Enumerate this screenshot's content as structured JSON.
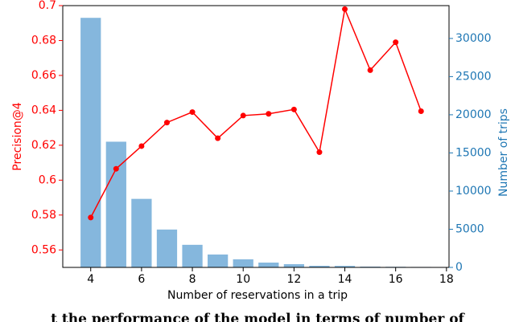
{
  "chart_data": {
    "type": "bar_line",
    "xlabel": "Number of reservations in a trip",
    "ylabel": "Precision@4",
    "y2label": "Number of trips",
    "caption": "t the performance of the model in terms of number of",
    "x": [
      4,
      5,
      6,
      7,
      8,
      9,
      10,
      11,
      12,
      13,
      14,
      15,
      16,
      17
    ],
    "xlim": [
      2.9,
      18.1
    ],
    "xticks": [
      4,
      6,
      8,
      10,
      12,
      14,
      16,
      18
    ],
    "ylim": [
      0.55,
      0.7
    ],
    "yticks": [
      0.56,
      0.58,
      0.6,
      0.62,
      0.64,
      0.66,
      0.68,
      0.7
    ],
    "y2lim": [
      0,
      34300
    ],
    "y2ticks": [
      0,
      5000,
      10000,
      15000,
      20000,
      25000,
      30000
    ],
    "ycolor": "#ff0000",
    "y2color": "#1f77b4",
    "series": [
      {
        "name": "Number of trips",
        "kind": "bar",
        "axis": "y2",
        "color": "#85b7dd",
        "values": [
          32700,
          16470,
          8980,
          4960,
          2960,
          1690,
          1060,
          630,
          420,
          210,
          200,
          100,
          80,
          60
        ]
      },
      {
        "name": "Precision@4",
        "kind": "line",
        "axis": "y",
        "color": "#ff0000",
        "values": [
          0.5786,
          0.6065,
          0.6195,
          0.633,
          0.639,
          0.624,
          0.637,
          0.638,
          0.6405,
          0.616,
          0.698,
          0.663,
          0.679,
          0.6395
        ]
      }
    ]
  }
}
